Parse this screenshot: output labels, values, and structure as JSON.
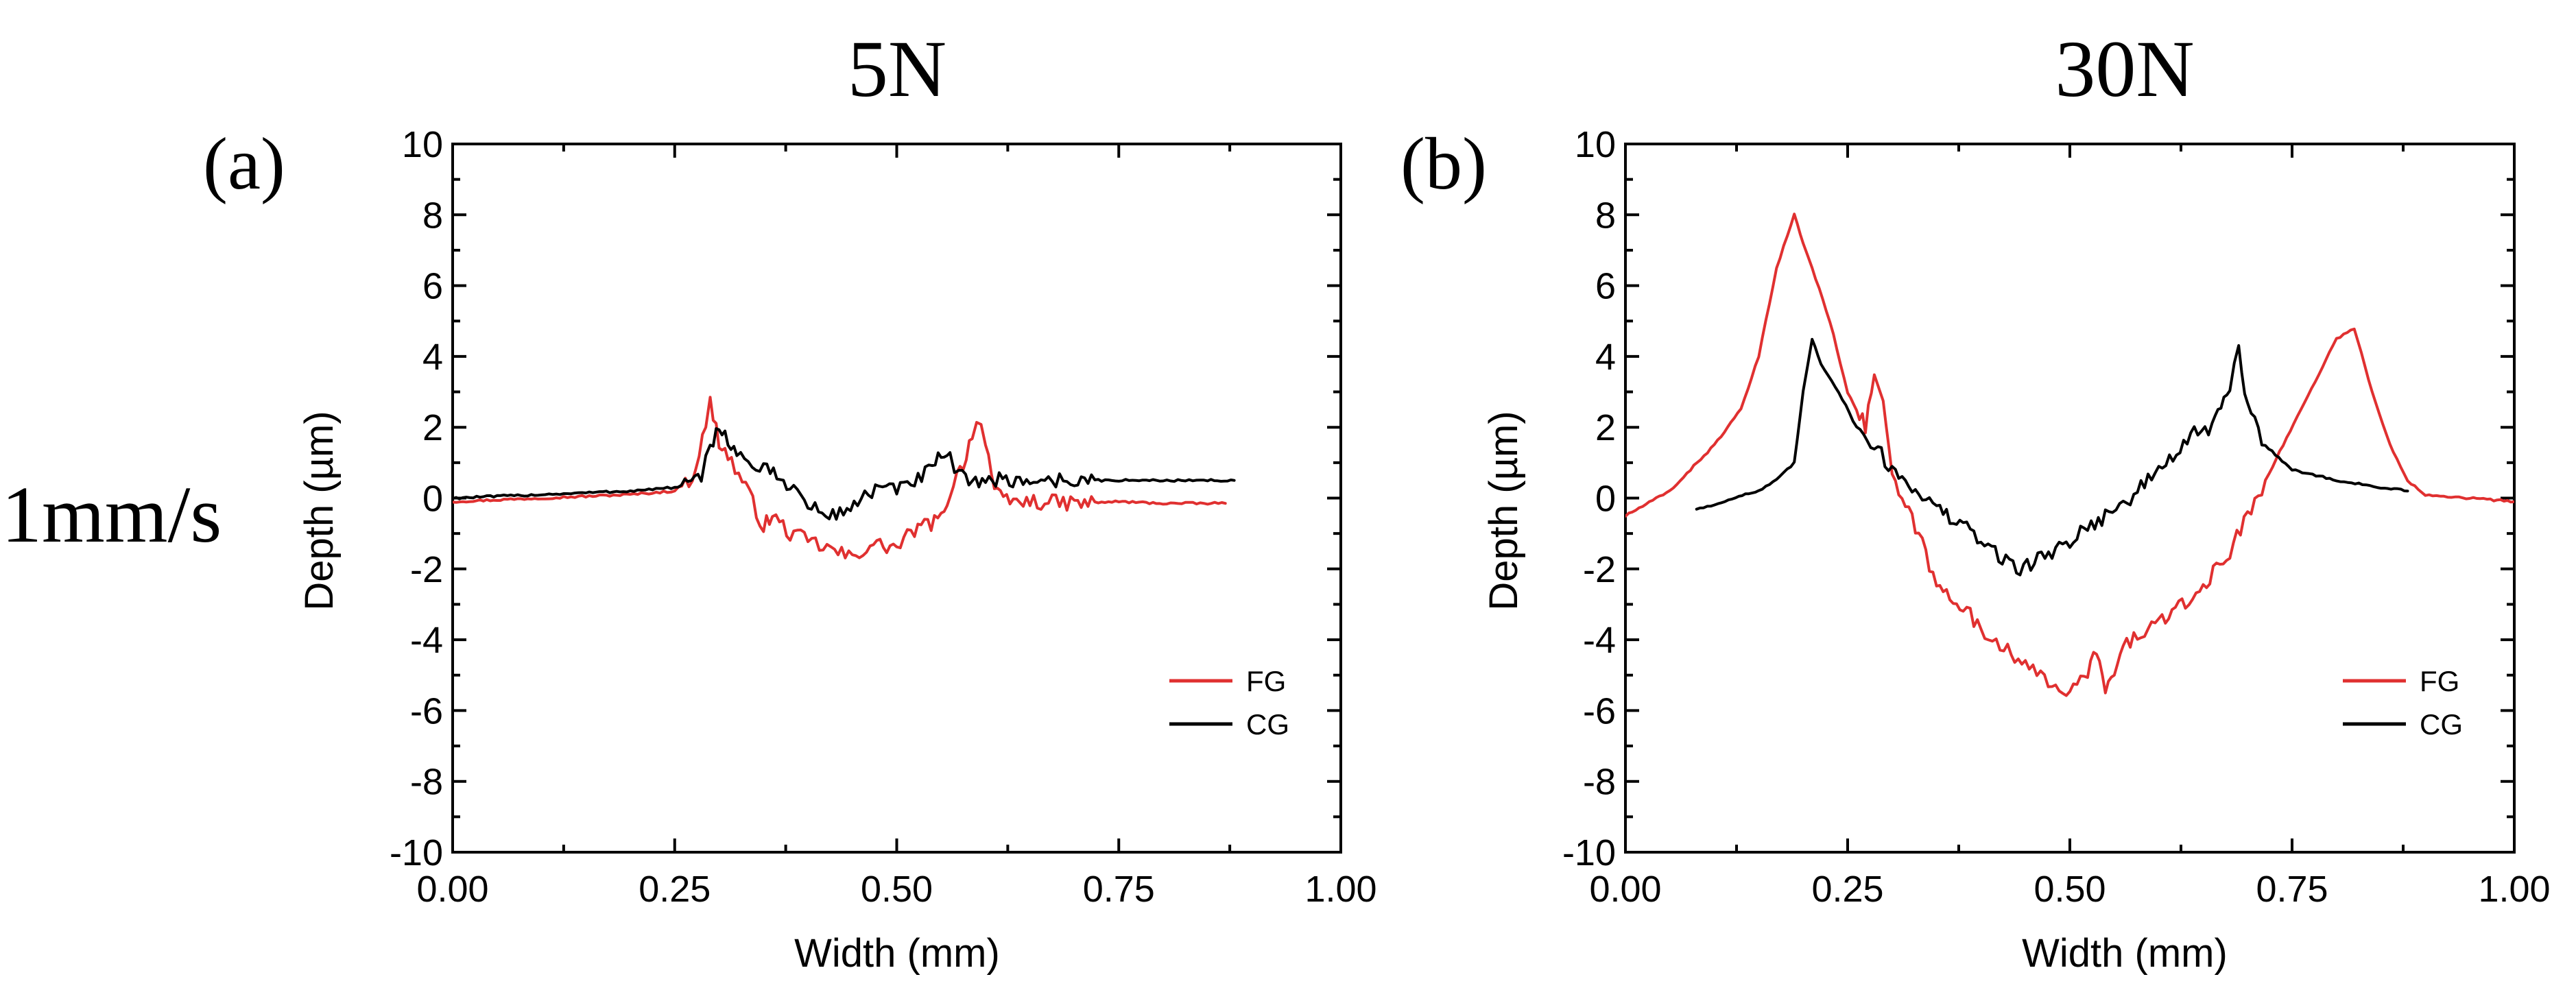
{
  "figure": {
    "row_label": "1mm/s"
  },
  "chart_data": [
    {
      "type": "line",
      "panel": "(a)",
      "title": "5N",
      "xlabel": "Width (mm)",
      "ylabel": "Depth (µm)",
      "xlim": [
        0,
        1
      ],
      "ylim": [
        -10,
        10
      ],
      "xticks": [
        0,
        0.25,
        0.5,
        0.75,
        1
      ],
      "xtick_labels": [
        "0.00",
        "0.25",
        "0.50",
        "0.75",
        "1.00"
      ],
      "yticks": [
        10,
        8,
        6,
        4,
        2,
        0,
        -2,
        -4,
        -6,
        -8,
        -10
      ],
      "ytick_labels": [
        "10",
        "8",
        "6",
        "4",
        "2",
        "0",
        "-2",
        "-4",
        "-6",
        "-8",
        "-10"
      ],
      "legend_position": "bottom-right",
      "series": [
        {
          "name": "FG",
          "color": "#e03030",
          "x": [
            0.0,
            0.05,
            0.1,
            0.15,
            0.2,
            0.25,
            0.27,
            0.285,
            0.29,
            0.3,
            0.31,
            0.33,
            0.35,
            0.36,
            0.38,
            0.4,
            0.43,
            0.45,
            0.47,
            0.5,
            0.52,
            0.55,
            0.56,
            0.575,
            0.585,
            0.59,
            0.595,
            0.6,
            0.61,
            0.62,
            0.65,
            0.7,
            0.75,
            0.8,
            0.85,
            0.87
          ],
          "y": [
            -0.1,
            -0.05,
            0.0,
            0.05,
            0.1,
            0.2,
            0.6,
            2.0,
            2.7,
            1.6,
            1.2,
            0.3,
            -0.8,
            -0.5,
            -1.0,
            -1.2,
            -1.5,
            -1.7,
            -1.3,
            -1.4,
            -0.9,
            -0.6,
            0.2,
            1.0,
            1.8,
            2.2,
            2.0,
            1.7,
            0.2,
            -0.1,
            -0.1,
            -0.15,
            -0.1,
            -0.15,
            -0.15,
            -0.15
          ]
        },
        {
          "name": "CG",
          "color": "#000000",
          "x": [
            0.0,
            0.05,
            0.1,
            0.15,
            0.2,
            0.25,
            0.28,
            0.29,
            0.3,
            0.31,
            0.32,
            0.35,
            0.38,
            0.4,
            0.42,
            0.44,
            0.46,
            0.48,
            0.5,
            0.52,
            0.54,
            0.55,
            0.56,
            0.57,
            0.6,
            0.65,
            0.7,
            0.75,
            0.8,
            0.85,
            0.88
          ],
          "y": [
            0.0,
            0.05,
            0.1,
            0.15,
            0.2,
            0.3,
            0.5,
            1.5,
            2.0,
            1.7,
            1.2,
            0.8,
            0.4,
            -0.2,
            -0.5,
            -0.4,
            0.0,
            0.3,
            0.2,
            0.5,
            0.8,
            1.2,
            1.1,
            0.6,
            0.5,
            0.5,
            0.5,
            0.5,
            0.5,
            0.5,
            0.5
          ]
        }
      ]
    },
    {
      "type": "line",
      "panel": "(b)",
      "title": "30N",
      "xlabel": "Width (mm)",
      "ylabel": "Depth (µm)",
      "xlim": [
        0,
        1
      ],
      "ylim": [
        -10,
        10
      ],
      "xticks": [
        0,
        0.25,
        0.5,
        0.75,
        1
      ],
      "xtick_labels": [
        "0.00",
        "0.25",
        "0.50",
        "0.75",
        "1.00"
      ],
      "yticks": [
        10,
        8,
        6,
        4,
        2,
        0,
        -2,
        -4,
        -6,
        -8,
        -10
      ],
      "ytick_labels": [
        "10",
        "8",
        "6",
        "4",
        "2",
        "0",
        "-2",
        "-4",
        "-6",
        "-8",
        "-10"
      ],
      "legend_position": "bottom-right",
      "series": [
        {
          "name": "FG",
          "color": "#e03030",
          "x": [
            0.0,
            0.05,
            0.1,
            0.13,
            0.15,
            0.17,
            0.19,
            0.2,
            0.21,
            0.23,
            0.25,
            0.26,
            0.27,
            0.28,
            0.29,
            0.3,
            0.33,
            0.35,
            0.38,
            0.4,
            0.43,
            0.45,
            0.48,
            0.5,
            0.52,
            0.53,
            0.54,
            0.55,
            0.56,
            0.58,
            0.6,
            0.63,
            0.65,
            0.68,
            0.7,
            0.72,
            0.74,
            0.76,
            0.78,
            0.8,
            0.82,
            0.84,
            0.86,
            0.88,
            0.9,
            0.95,
            1.0
          ],
          "y": [
            -0.5,
            0.2,
            1.5,
            2.5,
            4.0,
            6.5,
            8.0,
            7.2,
            6.5,
            5.0,
            3.0,
            2.5,
            2.0,
            3.5,
            2.8,
            0.5,
            -1.0,
            -2.5,
            -3.0,
            -3.8,
            -4.2,
            -4.8,
            -5.2,
            -5.5,
            -5.0,
            -4.2,
            -5.5,
            -5.0,
            -4.2,
            -3.8,
            -3.5,
            -3.0,
            -2.5,
            -1.5,
            -0.5,
            0.5,
            1.5,
            2.5,
            3.5,
            4.5,
            4.8,
            3.0,
            1.5,
            0.5,
            0.1,
            0.0,
            -0.1
          ]
        },
        {
          "name": "CG",
          "color": "#000000",
          "x": [
            0.08,
            0.1,
            0.12,
            0.15,
            0.17,
            0.19,
            0.2,
            0.21,
            0.22,
            0.24,
            0.26,
            0.28,
            0.3,
            0.33,
            0.35,
            0.38,
            0.4,
            0.42,
            0.44,
            0.46,
            0.48,
            0.5,
            0.52,
            0.54,
            0.56,
            0.58,
            0.6,
            0.62,
            0.64,
            0.66,
            0.67,
            0.68,
            0.69,
            0.7,
            0.72,
            0.75,
            0.8,
            0.85,
            0.88
          ],
          "y": [
            -0.3,
            -0.2,
            0.0,
            0.2,
            0.5,
            1.0,
            3.0,
            4.5,
            3.8,
            3.0,
            2.0,
            1.5,
            0.8,
            0.2,
            -0.3,
            -0.8,
            -1.2,
            -1.6,
            -2.0,
            -1.8,
            -1.5,
            -1.2,
            -0.8,
            -0.5,
            -0.2,
            0.3,
            0.8,
            1.3,
            1.8,
            2.0,
            2.5,
            3.2,
            4.2,
            2.5,
            1.5,
            0.8,
            0.5,
            0.3,
            0.2
          ]
        }
      ]
    }
  ]
}
